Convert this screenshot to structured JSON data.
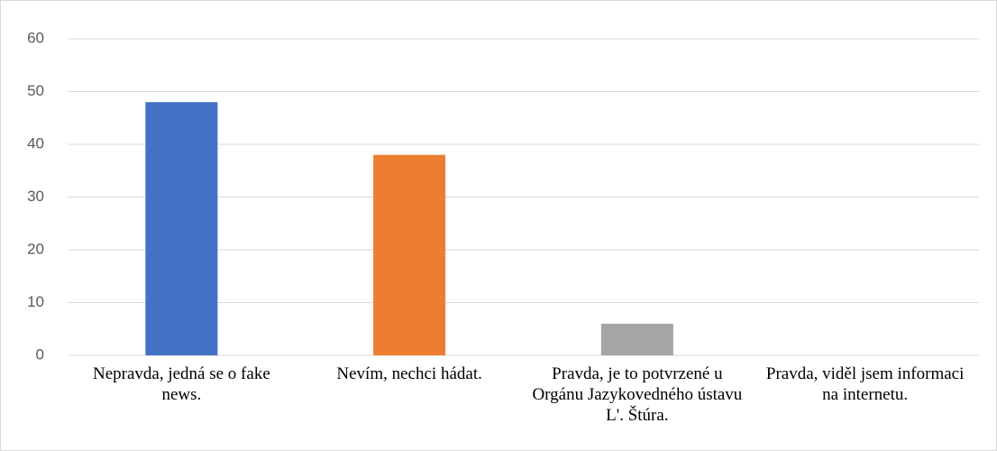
{
  "chart_data": {
    "type": "bar",
    "categories": [
      "Nepravda, jedná se o fake news.",
      "Nevím, nechci hádat.",
      "Pravda, je to potvrzené u Orgánu Jazykovedného ústavu L'. Štúra.",
      "Pravda, viděl jsem informaci na internetu."
    ],
    "values": [
      48,
      38,
      6,
      0
    ],
    "colors": [
      "#4472c4",
      "#ed7d31",
      "#a5a5a5",
      "#ffc000"
    ],
    "ylim": [
      0,
      60
    ],
    "yticks": [
      0,
      10,
      20,
      30,
      40,
      50,
      60
    ],
    "grid": true
  }
}
